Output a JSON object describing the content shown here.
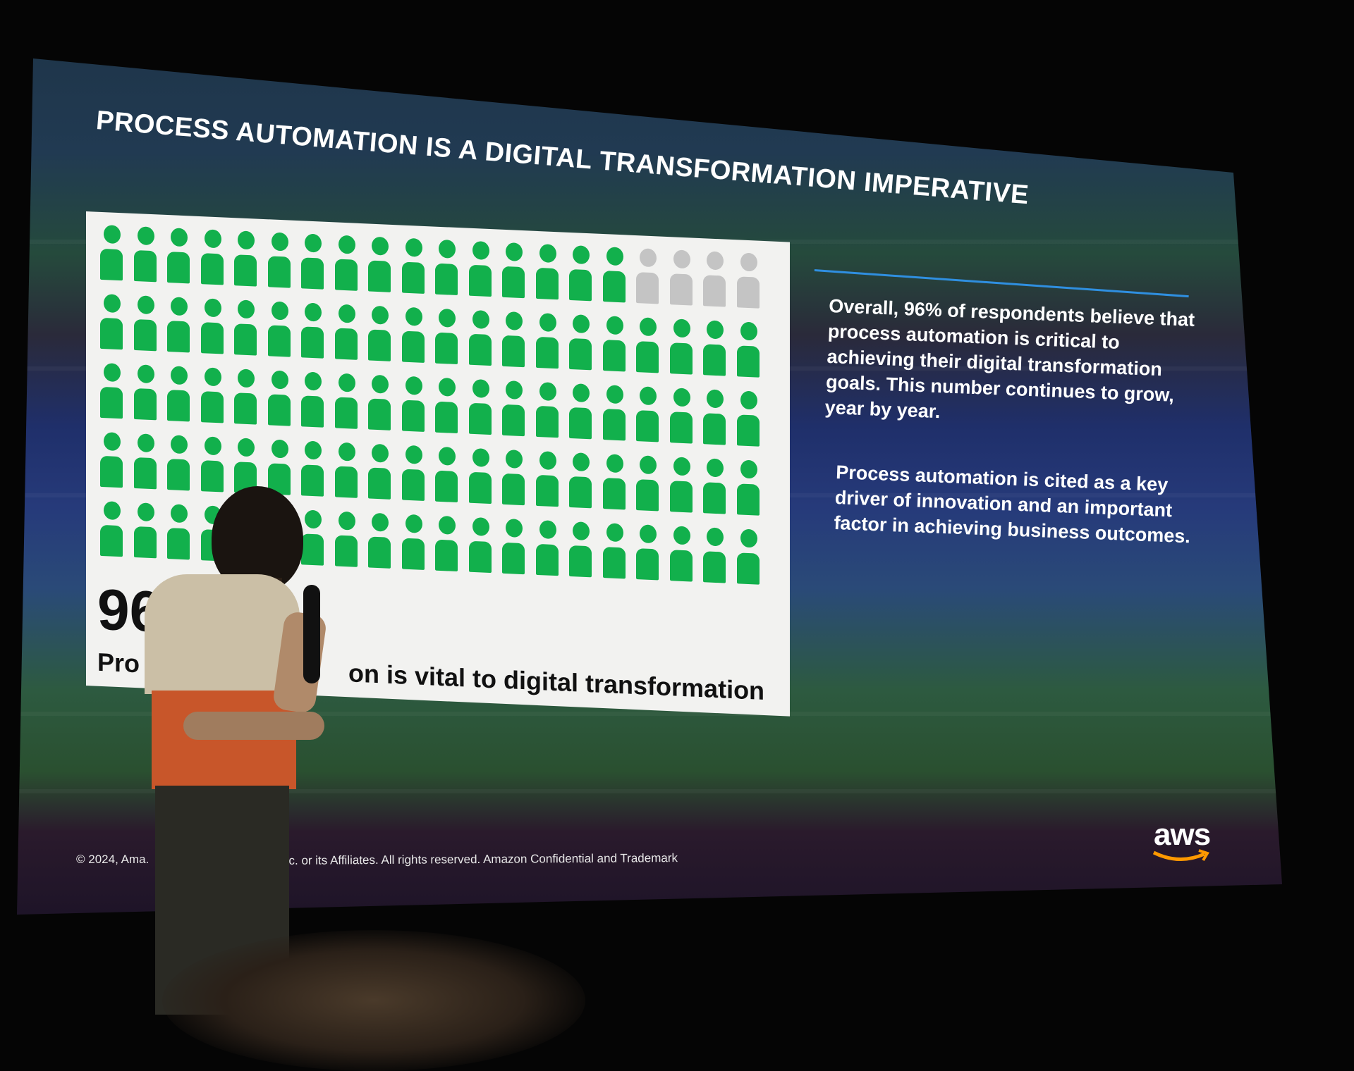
{
  "slide": {
    "title": "PROCESS AUTOMATION IS A DIGITAL TRANSFORMATION IMPERATIVE",
    "pictogram": {
      "total": 100,
      "filled": 96,
      "columns": 20,
      "rows": 5,
      "filled_color": "#12b04c",
      "empty_color": "#c4c4c4"
    },
    "stat_visible": "96",
    "caption_visible_start": "Pro",
    "caption_visible_end": "on is vital to digital transformation",
    "paragraph_1": "Overall, 96% of respondents believe that process automation is critical to achieving their digital transformation goals. This number continues to grow, year by year.",
    "paragraph_2": "Process automation is cited as a key driver of innovation and an important factor in achieving business outcomes.",
    "accent_line_color": "#2f8fe0",
    "footer_visible_start": "© 2024, Ama.",
    "footer_visible_end": "nc. or its Affiliates. All rights reserved. Amazon Confidential and Trademark",
    "logo": "aws"
  }
}
